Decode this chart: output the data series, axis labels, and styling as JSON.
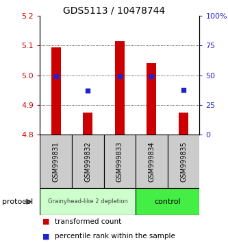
{
  "title": "GDS5113 / 10478744",
  "samples": [
    "GSM999831",
    "GSM999832",
    "GSM999833",
    "GSM999834",
    "GSM999835"
  ],
  "bar_bottoms": [
    4.8,
    4.8,
    4.8,
    4.8,
    4.8
  ],
  "bar_tops": [
    5.095,
    4.875,
    5.115,
    5.04,
    4.875
  ],
  "percentile_ranks": [
    49,
    37,
    49,
    49,
    38
  ],
  "ylim": [
    4.8,
    5.2
  ],
  "yticks_left": [
    4.8,
    4.9,
    5.0,
    5.1,
    5.2
  ],
  "yticks_right": [
    0,
    25,
    50,
    75,
    100
  ],
  "bar_color": "#cc0000",
  "dot_color": "#2222cc",
  "group1_label": "Grainyhead-like 2 depletion",
  "group2_label": "control",
  "group1_color": "#ccffcc",
  "group2_color": "#44ee44",
  "protocol_label": "protocol",
  "legend_bar_label": "transformed count",
  "legend_dot_label": "percentile rank within the sample",
  "left_tick_color": "#cc0000",
  "right_tick_color": "#2222cc",
  "title_fontsize": 10,
  "tick_fontsize": 8,
  "sample_fontsize": 7,
  "legend_fontsize": 7.5
}
